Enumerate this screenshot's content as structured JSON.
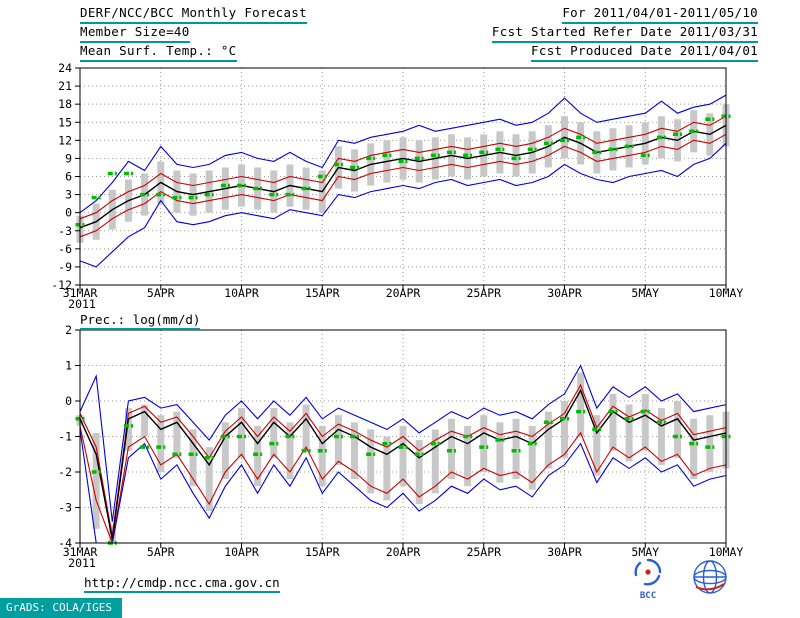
{
  "header": {
    "title": "DERF/NCC/BCC Monthly Forecast",
    "member_size": "Member Size=40",
    "for_range": "For 2011/04/01-2011/05/10",
    "refer_date": "Fcst Started Refer Date 2011/03/31",
    "produced_date": "Fcst Produced Date 2011/04/01"
  },
  "footer": {
    "url": "http://cmdp.ncc.cma.gov.cn",
    "grads_stamp": "GrADS: COLA/IGES",
    "bcc_logo_label": "BCC"
  },
  "colors": {
    "accent_teal": "#009999",
    "line_blue": "#0000e0",
    "line_red": "#cc0000",
    "line_black": "#000000",
    "obs_green": "#00bb00",
    "bar_gray": "#c8c8c8"
  },
  "chart_data": [
    {
      "type": "line",
      "name": "temperature",
      "title": "Mean Surf. Temp.: °C",
      "ylabel": "°C",
      "ylim": [
        -12,
        24
      ],
      "y_ticks": [
        24,
        21,
        18,
        15,
        12,
        9,
        6,
        3,
        0,
        -3,
        -6,
        -9,
        -12
      ],
      "n_days": 41,
      "x_ticks": [
        {
          "day": 0,
          "label": "31MAR",
          "year": "2011"
        },
        {
          "day": 5,
          "label": "5APR"
        },
        {
          "day": 10,
          "label": "10APR"
        },
        {
          "day": 15,
          "label": "15APR"
        },
        {
          "day": 20,
          "label": "20APR"
        },
        {
          "day": 25,
          "label": "25APR"
        },
        {
          "day": 30,
          "label": "30APR"
        },
        {
          "day": 35,
          "label": "5MAY"
        },
        {
          "day": 40,
          "label": "10MAY"
        }
      ],
      "series": [
        {
          "name": "ensemble-max",
          "color": "#0000e0",
          "width": 1.1,
          "values": [
            0.0,
            2.0,
            5.0,
            8.5,
            7.0,
            11.0,
            8.0,
            7.5,
            8.0,
            9.5,
            10.0,
            9.0,
            8.5,
            10.0,
            8.5,
            7.5,
            12.0,
            11.5,
            12.5,
            13.0,
            13.5,
            14.5,
            13.5,
            14.0,
            14.5,
            15.0,
            15.5,
            14.5,
            15.0,
            16.5,
            19.0,
            16.5,
            15.0,
            15.5,
            16.0,
            16.5,
            18.5,
            16.5,
            17.5,
            18.0,
            19.5
          ]
        },
        {
          "name": "spread-upper",
          "color": "#cc0000",
          "width": 1.1,
          "values": [
            -1.0,
            0.0,
            2.0,
            3.5,
            4.5,
            6.5,
            5.0,
            4.5,
            5.0,
            5.5,
            6.0,
            5.5,
            5.0,
            6.0,
            5.5,
            5.0,
            9.0,
            8.5,
            9.5,
            10.0,
            10.5,
            10.0,
            10.5,
            11.0,
            10.5,
            11.0,
            11.5,
            11.0,
            11.5,
            12.5,
            14.0,
            13.0,
            11.5,
            12.0,
            12.5,
            13.0,
            14.0,
            13.5,
            15.0,
            14.5,
            16.0
          ]
        },
        {
          "name": "ensemble-mean",
          "color": "#000000",
          "width": 1.4,
          "values": [
            -2.5,
            -1.5,
            0.5,
            2.0,
            3.0,
            5.0,
            3.5,
            3.0,
            3.5,
            4.0,
            4.5,
            4.0,
            3.5,
            4.5,
            4.0,
            3.5,
            7.5,
            7.0,
            8.0,
            8.5,
            9.0,
            8.5,
            9.0,
            9.5,
            9.0,
            9.5,
            10.0,
            9.5,
            10.0,
            11.0,
            12.5,
            11.5,
            10.0,
            10.5,
            11.0,
            11.5,
            12.5,
            12.0,
            13.5,
            13.0,
            14.5
          ]
        },
        {
          "name": "spread-lower",
          "color": "#cc0000",
          "width": 1.1,
          "values": [
            -4.0,
            -3.0,
            -1.0,
            0.5,
            1.5,
            3.5,
            2.0,
            1.5,
            2.0,
            2.5,
            3.0,
            2.5,
            2.0,
            3.0,
            2.5,
            2.0,
            6.0,
            5.5,
            6.5,
            7.0,
            7.5,
            7.0,
            7.5,
            8.0,
            7.5,
            8.0,
            8.5,
            8.0,
            8.5,
            9.5,
            11.0,
            10.0,
            8.5,
            9.0,
            9.5,
            10.0,
            11.0,
            10.5,
            12.0,
            11.5,
            13.0
          ]
        },
        {
          "name": "ensemble-min",
          "color": "#0000e0",
          "width": 1.1,
          "values": [
            -8.0,
            -9.0,
            -6.5,
            -4.0,
            -2.5,
            2.0,
            -1.5,
            -2.0,
            -1.5,
            -0.5,
            0.0,
            -0.5,
            -1.0,
            0.5,
            0.0,
            -0.5,
            3.0,
            2.5,
            3.5,
            4.0,
            4.5,
            4.0,
            5.0,
            5.5,
            4.5,
            5.0,
            5.5,
            4.5,
            5.0,
            6.0,
            8.0,
            6.5,
            5.5,
            5.0,
            6.0,
            6.5,
            7.0,
            6.0,
            8.0,
            9.0,
            11.5
          ]
        }
      ],
      "obs": {
        "name": "observation",
        "color": "#00bb00",
        "values": [
          -2.0,
          2.5,
          6.5,
          6.5,
          3.0,
          3.0,
          2.5,
          2.5,
          3.0,
          4.5,
          4.5,
          4.0,
          3.0,
          3.0,
          4.0,
          6.0,
          8.0,
          7.5,
          9.0,
          9.5,
          8.5,
          9.0,
          9.5,
          10.0,
          9.5,
          10.0,
          10.5,
          9.0,
          10.5,
          11.5,
          12.0,
          12.5,
          10.0,
          10.5,
          11.0,
          9.5,
          12.5,
          13.0,
          13.5,
          15.5,
          16.0
        ]
      },
      "bars": {
        "name": "member-spread",
        "color": "#c8c8c8",
        "top": [
          -0.5,
          1.5,
          3.8,
          5.5,
          6.5,
          8.5,
          7.0,
          6.5,
          7.0,
          7.5,
          8.0,
          7.5,
          7.0,
          8.0,
          7.5,
          7.0,
          11.0,
          10.5,
          11.5,
          12.0,
          12.5,
          12.0,
          12.5,
          13.0,
          12.5,
          13.0,
          13.5,
          13.0,
          13.5,
          14.5,
          16.0,
          15.0,
          13.5,
          14.0,
          14.5,
          15.0,
          16.0,
          15.5,
          17.0,
          16.5,
          18.0
        ],
        "bottom": [
          -5.0,
          -4.5,
          -2.8,
          -1.5,
          -0.5,
          1.5,
          0.0,
          -0.5,
          0.0,
          0.5,
          1.0,
          0.5,
          0.0,
          1.0,
          0.5,
          0.0,
          4.0,
          3.5,
          4.5,
          5.0,
          5.5,
          5.0,
          5.5,
          6.0,
          5.5,
          6.0,
          6.5,
          6.0,
          6.5,
          7.5,
          9.0,
          8.0,
          6.5,
          7.0,
          7.5,
          8.0,
          9.0,
          8.5,
          10.0,
          9.5,
          11.0
        ]
      }
    },
    {
      "type": "line",
      "name": "precipitation",
      "title": "Prec.: log(mm/d)",
      "ylabel": "log(mm/d)",
      "ylim": [
        -4,
        2
      ],
      "y_ticks": [
        2,
        1,
        0,
        -1,
        -2,
        -3,
        -4
      ],
      "n_days": 41,
      "x_ticks": [
        {
          "day": 0,
          "label": "31MAR",
          "year": "2011"
        },
        {
          "day": 5,
          "label": "5APR"
        },
        {
          "day": 10,
          "label": "10APR"
        },
        {
          "day": 15,
          "label": "15APR"
        },
        {
          "day": 20,
          "label": "20APR"
        },
        {
          "day": 25,
          "label": "25APR"
        },
        {
          "day": 30,
          "label": "30APR"
        },
        {
          "day": 35,
          "label": "5MAY"
        },
        {
          "day": 40,
          "label": "10MAY"
        }
      ],
      "series": [
        {
          "name": "ensemble-max",
          "color": "#0000e0",
          "width": 1.1,
          "values": [
            -0.3,
            0.7,
            -3.4,
            0.0,
            0.1,
            -0.2,
            -0.1,
            -0.6,
            -1.1,
            -0.4,
            0.0,
            -0.5,
            0.0,
            -0.4,
            0.1,
            -0.5,
            -0.2,
            -0.4,
            -0.6,
            -0.8,
            -0.5,
            -0.9,
            -0.6,
            -0.3,
            -0.5,
            -0.2,
            -0.4,
            -0.3,
            -0.5,
            -0.1,
            0.2,
            1.0,
            -0.2,
            0.4,
            0.1,
            0.4,
            0.0,
            0.2,
            -0.3,
            -0.2,
            -0.1
          ]
        },
        {
          "name": "spread-upper",
          "color": "#cc0000",
          "width": 1.1,
          "values": [
            -0.35,
            -1.3,
            -3.8,
            -0.35,
            -0.15,
            -0.6,
            -0.45,
            -1.0,
            -1.6,
            -0.85,
            -0.45,
            -1.0,
            -0.45,
            -0.85,
            -0.35,
            -1.0,
            -0.65,
            -0.85,
            -1.1,
            -1.3,
            -1.0,
            -1.4,
            -1.1,
            -0.85,
            -1.0,
            -0.75,
            -0.95,
            -0.85,
            -1.0,
            -0.65,
            -0.35,
            0.45,
            -0.75,
            -0.15,
            -0.45,
            -0.25,
            -0.55,
            -0.35,
            -0.95,
            -0.85,
            -0.75
          ]
        },
        {
          "name": "ensemble-mean",
          "color": "#000000",
          "width": 1.4,
          "values": [
            -0.5,
            -1.5,
            -3.9,
            -0.5,
            -0.3,
            -0.8,
            -0.6,
            -1.2,
            -1.8,
            -1.0,
            -0.6,
            -1.2,
            -0.6,
            -1.0,
            -0.5,
            -1.2,
            -0.8,
            -1.0,
            -1.3,
            -1.5,
            -1.2,
            -1.6,
            -1.3,
            -1.0,
            -1.2,
            -0.9,
            -1.1,
            -1.0,
            -1.2,
            -0.8,
            -0.5,
            0.3,
            -0.9,
            -0.3,
            -0.6,
            -0.4,
            -0.7,
            -0.5,
            -1.1,
            -1.0,
            -0.9
          ]
        },
        {
          "name": "spread-lower",
          "color": "#cc0000",
          "width": 1.1,
          "values": [
            -0.7,
            -2.8,
            -4.0,
            -1.3,
            -1.0,
            -1.8,
            -1.5,
            -2.2,
            -2.9,
            -2.0,
            -1.5,
            -2.2,
            -1.5,
            -2.0,
            -1.3,
            -2.2,
            -1.7,
            -2.0,
            -2.4,
            -2.6,
            -2.2,
            -2.7,
            -2.4,
            -2.0,
            -2.2,
            -1.9,
            -2.1,
            -2.0,
            -2.3,
            -1.8,
            -1.5,
            -0.9,
            -2.0,
            -1.3,
            -1.6,
            -1.3,
            -1.7,
            -1.5,
            -2.1,
            -1.9,
            -1.8
          ]
        },
        {
          "name": "ensemble-min",
          "color": "#0000e0",
          "width": 1.1,
          "values": [
            -0.8,
            -4.0,
            -4.0,
            -1.6,
            -1.2,
            -2.2,
            -1.8,
            -2.6,
            -3.3,
            -2.4,
            -1.8,
            -2.6,
            -1.8,
            -2.4,
            -1.6,
            -2.6,
            -2.0,
            -2.4,
            -2.8,
            -3.0,
            -2.6,
            -3.1,
            -2.8,
            -2.4,
            -2.6,
            -2.2,
            -2.5,
            -2.4,
            -2.7,
            -2.1,
            -1.8,
            -1.2,
            -2.3,
            -1.6,
            -1.9,
            -1.6,
            -2.0,
            -1.8,
            -2.4,
            -2.2,
            -2.1
          ]
        }
      ],
      "obs": {
        "name": "observation",
        "color": "#00bb00",
        "values": [
          -0.5,
          -2.0,
          -4.0,
          -0.7,
          -1.3,
          -1.3,
          -1.5,
          -1.5,
          -1.6,
          -1.0,
          -1.0,
          -1.5,
          -1.2,
          -1.0,
          -1.4,
          -1.4,
          -1.0,
          -1.0,
          -1.5,
          -1.2,
          -1.3,
          -1.5,
          -1.2,
          -1.4,
          -1.0,
          -1.3,
          -1.1,
          -1.4,
          -1.2,
          -0.6,
          -0.5,
          -0.3,
          -0.8,
          -0.3,
          -0.5,
          -0.3,
          -0.6,
          -1.0,
          -1.2,
          -1.3,
          -1.0
        ]
      },
      "bars": {
        "name": "member-spread",
        "color": "#c8c8c8",
        "top": [
          -0.4,
          -0.9,
          -3.5,
          -0.2,
          -0.1,
          -0.4,
          -0.3,
          -0.8,
          -1.3,
          -0.6,
          -0.2,
          -0.7,
          -0.2,
          -0.6,
          -0.1,
          -0.7,
          -0.4,
          -0.6,
          -0.8,
          -1.0,
          -0.7,
          -1.1,
          -0.8,
          -0.5,
          -0.7,
          -0.4,
          -0.6,
          -0.5,
          -0.7,
          -0.3,
          0.0,
          0.8,
          -0.4,
          0.2,
          -0.1,
          0.2,
          -0.2,
          0.0,
          -0.5,
          -0.4,
          -0.3
        ],
        "bottom": [
          -0.7,
          -3.6,
          -4.0,
          -1.4,
          -1.0,
          -2.0,
          -1.6,
          -2.4,
          -3.1,
          -2.2,
          -1.6,
          -2.4,
          -1.6,
          -2.2,
          -1.4,
          -2.4,
          -1.8,
          -2.2,
          -2.6,
          -2.8,
          -2.4,
          -2.9,
          -2.6,
          -2.2,
          -2.4,
          -2.0,
          -2.3,
          -2.2,
          -2.5,
          -1.9,
          -1.6,
          -1.0,
          -2.1,
          -1.4,
          -1.7,
          -1.4,
          -1.8,
          -1.6,
          -2.2,
          -2.0,
          -1.9
        ]
      }
    }
  ]
}
